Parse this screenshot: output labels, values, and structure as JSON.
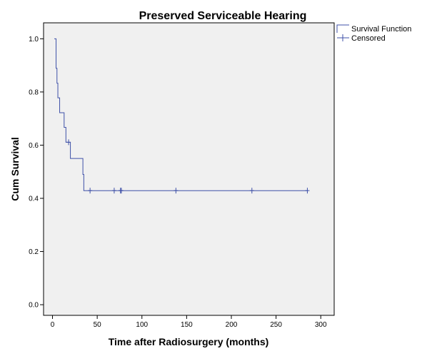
{
  "chart_data": {
    "type": "line",
    "title": "Preserved Serviceable Hearing",
    "xlabel": "Time after Radiosurgery (months)",
    "ylabel": "Cum Survival",
    "xlim": [
      -10,
      315
    ],
    "ylim": [
      -0.04,
      1.06
    ],
    "x_ticks": [
      0,
      50,
      100,
      150,
      200,
      250,
      300
    ],
    "y_ticks": [
      0.0,
      0.2,
      0.4,
      0.6,
      0.8,
      1.0
    ],
    "y_tick_labels": [
      "0.0",
      "0.2",
      "0.4",
      "0.6",
      "0.8",
      "1.0"
    ],
    "grid": false,
    "legend_position": "right-top",
    "colors": {
      "line": "#3f51a8",
      "plot_bg": "#f0f0f0",
      "frame": "#000000"
    },
    "series": [
      {
        "name": "Survival Function",
        "step_points": [
          [
            2,
            1.0
          ],
          [
            4,
            0.889
          ],
          [
            5,
            0.833
          ],
          [
            6,
            0.778
          ],
          [
            8,
            0.722
          ],
          [
            13,
            0.667
          ],
          [
            15,
            0.611
          ],
          [
            20,
            0.55
          ],
          [
            34,
            0.49
          ],
          [
            35,
            0.429
          ],
          [
            285,
            0.429
          ]
        ]
      },
      {
        "name": "Censored",
        "points": [
          [
            18,
            0.611
          ],
          [
            42,
            0.429
          ],
          [
            69,
            0.429
          ],
          [
            76,
            0.429
          ],
          [
            77,
            0.429
          ],
          [
            138,
            0.429
          ],
          [
            223,
            0.429
          ],
          [
            285,
            0.429
          ]
        ]
      }
    ]
  }
}
